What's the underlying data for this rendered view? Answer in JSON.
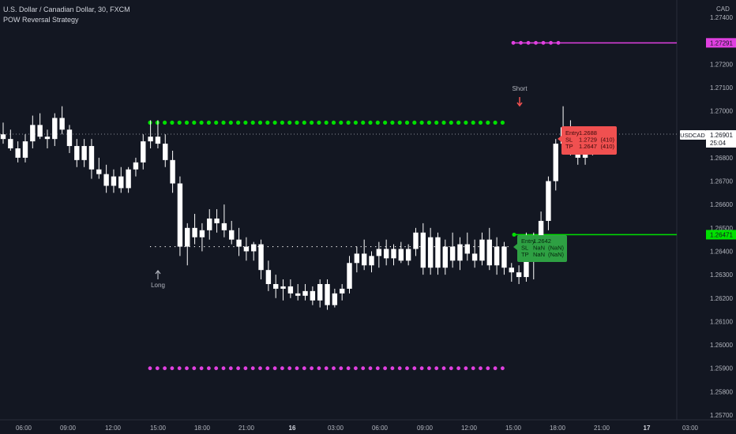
{
  "header": {
    "title": "U.S. Dollar / Canadian Dollar, 30, FXCM",
    "indicator": "POW Reversal Strategy"
  },
  "price_axis": {
    "currency": "CAD",
    "symbol_tag": "USDCAD",
    "last_price": "1.26901",
    "countdown": "25:04",
    "magenta_level_label": "1.27291",
    "green_level_label": "1.26471"
  },
  "colors": {
    "background": "#131722",
    "candle": "#ffffff",
    "green_dots": "#00e000",
    "magenta_dots": "#e040e0",
    "short_box": "#f05050",
    "long_box": "#2ea043",
    "green_line": "#00e000",
    "magenta_line": "#e040e0"
  },
  "signals": {
    "long_label": "Long",
    "short_label": "Short"
  },
  "short_trade": {
    "entry_label": "Entry",
    "entry_value": "1.2688",
    "sl_label": "SL",
    "sl_value": "1.2729",
    "sl_pips": "(410)",
    "tp_label": "TP",
    "tp_value": "1.2647",
    "tp_pips": "(410)"
  },
  "long_trade": {
    "entry_label": "Entry",
    "entry_value": "1.2642",
    "sl_label": "SL",
    "sl_value": "NaN",
    "sl_pips": "(NaN)",
    "tp_label": "TP",
    "tp_value": "NaN",
    "tp_pips": "(NaN)"
  },
  "chart_data": {
    "type": "candlestick",
    "y_ticks": [
      "1.27400",
      "1.27300",
      "1.27200",
      "1.27100",
      "1.27000",
      "1.26900",
      "1.26800",
      "1.26700",
      "1.26600",
      "1.26500",
      "1.26400",
      "1.26300",
      "1.26200",
      "1.26100",
      "1.26000",
      "1.25900",
      "1.25800",
      "1.25700"
    ],
    "ylim": [
      1.2568,
      1.2744
    ],
    "x_ticks": [
      "06:00",
      "09:00",
      "12:00",
      "15:00",
      "18:00",
      "21:00",
      "16",
      "03:00",
      "06:00",
      "09:00",
      "12:00",
      "15:00",
      "18:00",
      "21:00",
      "17",
      "03:00"
    ],
    "bar_interval_minutes": 30,
    "candles": [
      [
        1.269,
        1.2695,
        1.2686,
        1.2688
      ],
      [
        1.2688,
        1.2692,
        1.2683,
        1.2684
      ],
      [
        1.2684,
        1.2687,
        1.2678,
        1.268
      ],
      [
        1.268,
        1.269,
        1.2678,
        1.2687
      ],
      [
        1.2687,
        1.2698,
        1.2684,
        1.2694
      ],
      [
        1.2694,
        1.2699,
        1.2688,
        1.2689
      ],
      [
        1.2689,
        1.2692,
        1.2684,
        1.2688
      ],
      [
        1.2688,
        1.2699,
        1.2685,
        1.2697
      ],
      [
        1.2697,
        1.2702,
        1.269,
        1.2692
      ],
      [
        1.2692,
        1.2694,
        1.2682,
        1.2685
      ],
      [
        1.2685,
        1.2688,
        1.2676,
        1.2679
      ],
      [
        1.2679,
        1.2688,
        1.2676,
        1.2685
      ],
      [
        1.2685,
        1.2688,
        1.2671,
        1.2675
      ],
      [
        1.2675,
        1.268,
        1.2671,
        1.2673
      ],
      [
        1.2673,
        1.2677,
        1.2665,
        1.2668
      ],
      [
        1.2668,
        1.2675,
        1.2665,
        1.2672
      ],
      [
        1.2672,
        1.2676,
        1.2665,
        1.2667
      ],
      [
        1.2667,
        1.2676,
        1.2665,
        1.2675
      ],
      [
        1.2675,
        1.268,
        1.2672,
        1.2678
      ],
      [
        1.2678,
        1.269,
        1.2675,
        1.2687
      ],
      [
        1.2687,
        1.2696,
        1.2684,
        1.2689
      ],
      [
        1.2689,
        1.2696,
        1.2684,
        1.2686
      ],
      [
        1.2686,
        1.269,
        1.2676,
        1.2679
      ],
      [
        1.2679,
        1.2683,
        1.2665,
        1.2669
      ],
      [
        1.2669,
        1.2672,
        1.2638,
        1.2642
      ],
      [
        1.2642,
        1.2652,
        1.2634,
        1.265
      ],
      [
        1.265,
        1.2656,
        1.2643,
        1.2646
      ],
      [
        1.2646,
        1.2652,
        1.264,
        1.2649
      ],
      [
        1.2649,
        1.2658,
        1.2645,
        1.2654
      ],
      [
        1.2654,
        1.2658,
        1.2648,
        1.2652
      ],
      [
        1.2652,
        1.266,
        1.2646,
        1.2649
      ],
      [
        1.2649,
        1.2653,
        1.2643,
        1.2645
      ],
      [
        1.2645,
        1.265,
        1.2638,
        1.2642
      ],
      [
        1.2642,
        1.2646,
        1.2636,
        1.264
      ],
      [
        1.264,
        1.2644,
        1.2636,
        1.2643
      ],
      [
        1.2643,
        1.2645,
        1.2628,
        1.2632
      ],
      [
        1.2632,
        1.2636,
        1.2623,
        1.2626
      ],
      [
        1.2626,
        1.263,
        1.262,
        1.2624
      ],
      [
        1.2624,
        1.2628,
        1.2619,
        1.2625
      ],
      [
        1.2625,
        1.2628,
        1.262,
        1.2622
      ],
      [
        1.2622,
        1.2626,
        1.2619,
        1.2621
      ],
      [
        1.2621,
        1.2626,
        1.2619,
        1.2623
      ],
      [
        1.2623,
        1.2625,
        1.2617,
        1.2619
      ],
      [
        1.2619,
        1.2628,
        1.2616,
        1.2626
      ],
      [
        1.2626,
        1.2628,
        1.2615,
        1.2617
      ],
      [
        1.2617,
        1.2624,
        1.2616,
        1.2622
      ],
      [
        1.2622,
        1.2626,
        1.2619,
        1.2624
      ],
      [
        1.2624,
        1.2638,
        1.2622,
        1.2635
      ],
      [
        1.2635,
        1.2642,
        1.2631,
        1.2639
      ],
      [
        1.2639,
        1.2645,
        1.2632,
        1.2634
      ],
      [
        1.2634,
        1.264,
        1.2631,
        1.2638
      ],
      [
        1.2638,
        1.2644,
        1.2633,
        1.2641
      ],
      [
        1.2641,
        1.2645,
        1.2634,
        1.2637
      ],
      [
        1.2637,
        1.2643,
        1.2634,
        1.2641
      ],
      [
        1.2641,
        1.2644,
        1.2635,
        1.2636
      ],
      [
        1.2636,
        1.2643,
        1.2634,
        1.2641
      ],
      [
        1.2641,
        1.265,
        1.2638,
        1.2648
      ],
      [
        1.2648,
        1.2652,
        1.263,
        1.2633
      ],
      [
        1.2633,
        1.265,
        1.263,
        1.2646
      ],
      [
        1.2646,
        1.2648,
        1.263,
        1.2633
      ],
      [
        1.2633,
        1.2645,
        1.263,
        1.2642
      ],
      [
        1.2642,
        1.2648,
        1.2633,
        1.2636
      ],
      [
        1.2636,
        1.2646,
        1.2632,
        1.2643
      ],
      [
        1.2643,
        1.2648,
        1.2636,
        1.2639
      ],
      [
        1.2639,
        1.2645,
        1.2633,
        1.2636
      ],
      [
        1.2636,
        1.2648,
        1.2634,
        1.2645
      ],
      [
        1.2645,
        1.265,
        1.2632,
        1.2634
      ],
      [
        1.2634,
        1.2646,
        1.263,
        1.2642
      ],
      [
        1.2642,
        1.2644,
        1.263,
        1.2633
      ],
      [
        1.2633,
        1.2635,
        1.2627,
        1.2631
      ],
      [
        1.2631,
        1.2634,
        1.2626,
        1.2629
      ],
      [
        1.2629,
        1.2648,
        1.2627,
        1.2643
      ],
      [
        1.2643,
        1.2648,
        1.2628,
        1.2642
      ],
      [
        1.2642,
        1.2657,
        1.264,
        1.2653
      ],
      [
        1.2653,
        1.2672,
        1.2649,
        1.267
      ],
      [
        1.267,
        1.2688,
        1.2666,
        1.2686
      ],
      [
        1.2686,
        1.2702,
        1.2684,
        1.2693
      ],
      [
        1.2693,
        1.2696,
        1.2681,
        1.2685
      ],
      [
        1.2685,
        1.269,
        1.2677,
        1.268
      ],
      [
        1.268,
        1.2686,
        1.2677,
        1.2684
      ],
      [
        1.2684,
        1.269,
        1.2681,
        1.2687
      ],
      [
        1.2687,
        1.2692,
        1.2684,
        1.269
      ],
      [
        1.269,
        1.2692,
        1.2686,
        1.269
      ]
    ],
    "green_dotted_level": 1.2695,
    "magenta_dotted_upper": 1.27291,
    "magenta_dotted_lower": 1.259,
    "white_dotted_entry_level": 1.2642,
    "last_price_line": 1.26901
  }
}
